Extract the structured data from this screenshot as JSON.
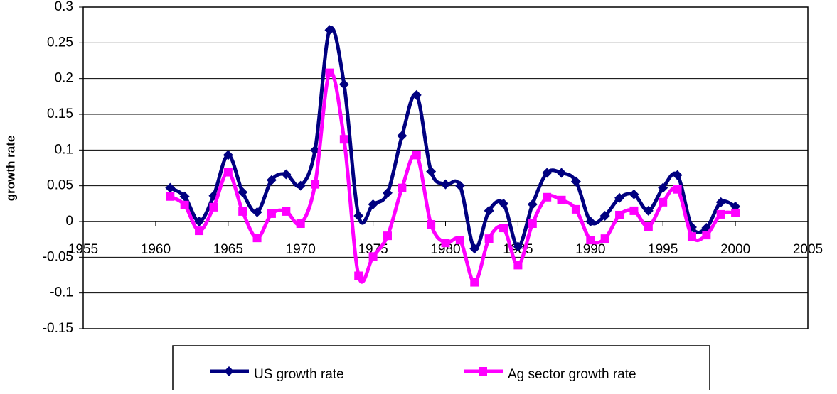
{
  "chart_data": {
    "type": "line",
    "y_label": "growth rate",
    "x": [
      1961,
      1962,
      1963,
      1964,
      1965,
      1966,
      1967,
      1968,
      1969,
      1970,
      1971,
      1972,
      1973,
      1974,
      1975,
      1976,
      1977,
      1978,
      1979,
      1980,
      1981,
      1982,
      1983,
      1984,
      1985,
      1986,
      1987,
      1988,
      1989,
      1990,
      1991,
      1992,
      1993,
      1994,
      1995,
      1996,
      1997,
      1998,
      1999,
      2000
    ],
    "series": [
      {
        "name": "US growth rate",
        "color": "#000080",
        "marker": "diamond",
        "values": [
          0.047,
          0.035,
          0.0,
          0.036,
          0.093,
          0.041,
          0.013,
          0.058,
          0.066,
          0.05,
          0.1,
          0.268,
          0.192,
          0.008,
          0.024,
          0.04,
          0.12,
          0.177,
          0.07,
          0.052,
          0.05,
          -0.038,
          0.015,
          0.025,
          -0.035,
          0.024,
          0.068,
          0.068,
          0.056,
          0.0,
          0.008,
          0.033,
          0.038,
          0.015,
          0.047,
          0.065,
          -0.008,
          -0.009,
          0.027,
          0.021
        ]
      },
      {
        "name": "Ag sector growth rate",
        "color": "#ff00ff",
        "marker": "square",
        "values": [
          0.035,
          0.023,
          -0.013,
          0.02,
          0.069,
          0.014,
          -0.023,
          0.011,
          0.014,
          -0.003,
          0.052,
          0.208,
          0.115,
          -0.076,
          -0.049,
          -0.02,
          0.047,
          0.093,
          -0.004,
          -0.03,
          -0.026,
          -0.085,
          -0.024,
          -0.009,
          -0.061,
          -0.003,
          0.034,
          0.03,
          0.017,
          -0.026,
          -0.024,
          0.009,
          0.015,
          -0.007,
          0.027,
          0.045,
          -0.021,
          -0.019,
          0.01,
          0.012
        ]
      }
    ],
    "xlim": [
      1955,
      2005
    ],
    "xticks": [
      1955,
      1960,
      1965,
      1970,
      1975,
      1980,
      1985,
      1990,
      1995,
      2000,
      2005
    ],
    "ylim": [
      -0.15,
      0.3
    ],
    "yticks": [
      -0.15,
      -0.1,
      -0.05,
      0,
      0.05,
      0.1,
      0.15,
      0.2,
      0.25,
      0.3
    ],
    "grid": true,
    "smooth": true,
    "legend": "bottom"
  }
}
